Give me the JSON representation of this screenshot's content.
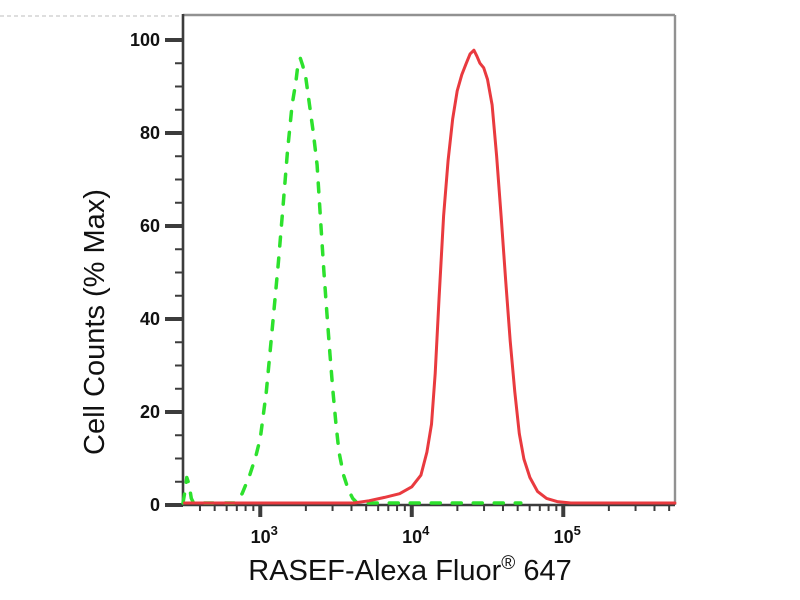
{
  "labels": {
    "ylabel": "Cell Counts (% Max)",
    "xlabel_main": "RASEF-Alexa Fluor",
    "xlabel_sup": "®",
    "xlabel_tail": " 647"
  },
  "axes": {
    "y_tick_labels": [
      "0",
      "20",
      "40",
      "60",
      "80",
      "100"
    ],
    "y_tick_values": [
      0,
      20,
      40,
      60,
      80,
      100
    ],
    "x_tick_base": "10",
    "x_major_exponents": [
      "3",
      "4",
      "5"
    ]
  },
  "colors": {
    "green_curve": "#2de12d",
    "red_curve": "#e93a3f",
    "axis_dark": "#3c3c3c",
    "frame_gray": "#919191",
    "text": "#111111"
  },
  "chart_data": {
    "type": "line",
    "subtype": "flow-cytometry-histogram-overlay",
    "title": "",
    "xlabel": "RASEF-Alexa Fluor® 647",
    "ylabel": "Cell Counts (% Max)",
    "x_scale": "log10",
    "x_range": [
      310,
      545000
    ],
    "ylim": [
      0,
      105
    ],
    "y_ticks": [
      0,
      20,
      40,
      60,
      80,
      100
    ],
    "x_major_ticks": [
      1000,
      10000,
      100000
    ],
    "grid": false,
    "legend": "none",
    "series": [
      {
        "name": "green dashed (negative control)",
        "style": "dashed",
        "color": "#2de12d",
        "stroke_width": 3.5,
        "peak_x_approx": 1800,
        "peak_y_percent": 96,
        "points_log10x_pct": [
          [
            2.49,
            0
          ],
          [
            2.505,
            3
          ],
          [
            2.515,
            5.5
          ],
          [
            2.53,
            4
          ],
          [
            2.545,
            1
          ],
          [
            2.56,
            0
          ],
          [
            2.65,
            0
          ],
          [
            2.75,
            0
          ],
          [
            2.83,
            0
          ],
          [
            2.88,
            2
          ],
          [
            2.93,
            6
          ],
          [
            2.97,
            10
          ],
          [
            3.0,
            14
          ],
          [
            3.04,
            24
          ],
          [
            3.08,
            38
          ],
          [
            3.12,
            52
          ],
          [
            3.15,
            64
          ],
          [
            3.18,
            76
          ],
          [
            3.21,
            86
          ],
          [
            3.235,
            91
          ],
          [
            3.25,
            95
          ],
          [
            3.265,
            96
          ],
          [
            3.28,
            94.5
          ],
          [
            3.3,
            92
          ],
          [
            3.325,
            86
          ],
          [
            3.35,
            80
          ],
          [
            3.375,
            73
          ],
          [
            3.4,
            60
          ],
          [
            3.42,
            50
          ],
          [
            3.44,
            41
          ],
          [
            3.46,
            32
          ],
          [
            3.48,
            24
          ],
          [
            3.5,
            17
          ],
          [
            3.52,
            11
          ],
          [
            3.55,
            6
          ],
          [
            3.58,
            3
          ],
          [
            3.61,
            1
          ],
          [
            3.64,
            0
          ],
          [
            3.75,
            0
          ],
          [
            3.9,
            0
          ],
          [
            4.1,
            0
          ],
          [
            4.3,
            0
          ],
          [
            4.5,
            0
          ],
          [
            4.72,
            0
          ]
        ]
      },
      {
        "name": "red solid (RASEF stained)",
        "style": "solid",
        "color": "#e93a3f",
        "stroke_width": 3,
        "peak_x_approx": 26000,
        "peak_y_percent": 98,
        "points_log10x_pct": [
          [
            2.5,
            0
          ],
          [
            2.8,
            0
          ],
          [
            3.1,
            0
          ],
          [
            3.4,
            0
          ],
          [
            3.62,
            0
          ],
          [
            3.72,
            0.5
          ],
          [
            3.82,
            1.2
          ],
          [
            3.92,
            2
          ],
          [
            4.0,
            3.5
          ],
          [
            4.06,
            6
          ],
          [
            4.1,
            11
          ],
          [
            4.13,
            17
          ],
          [
            4.155,
            28
          ],
          [
            4.18,
            44
          ],
          [
            4.21,
            62
          ],
          [
            4.24,
            74
          ],
          [
            4.27,
            83
          ],
          [
            4.3,
            89
          ],
          [
            4.33,
            92.5
          ],
          [
            4.36,
            95
          ],
          [
            4.385,
            97
          ],
          [
            4.41,
            97.8
          ],
          [
            4.43,
            96.5
          ],
          [
            4.45,
            95
          ],
          [
            4.475,
            94
          ],
          [
            4.5,
            91.5
          ],
          [
            4.53,
            86
          ],
          [
            4.56,
            75
          ],
          [
            4.59,
            62
          ],
          [
            4.62,
            48
          ],
          [
            4.65,
            35
          ],
          [
            4.68,
            24
          ],
          [
            4.71,
            15
          ],
          [
            4.74,
            9.5
          ],
          [
            4.78,
            5.5
          ],
          [
            4.83,
            2.5
          ],
          [
            4.89,
            1
          ],
          [
            4.96,
            0.3
          ],
          [
            5.05,
            0
          ],
          [
            5.2,
            0
          ],
          [
            5.4,
            0
          ],
          [
            5.6,
            0
          ],
          [
            5.737,
            0
          ]
        ]
      }
    ]
  }
}
